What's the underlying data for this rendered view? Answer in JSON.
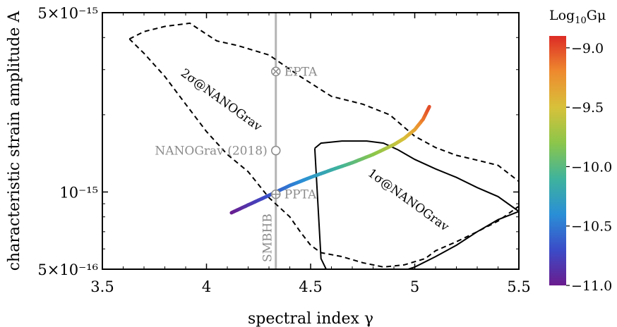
{
  "chart_data": {
    "type": "line",
    "xlabel": "spectral index γ",
    "ylabel": "characteristic strain amplitude  A",
    "xlim": [
      3.5,
      5.5
    ],
    "ylim": [
      5e-16,
      5e-15
    ],
    "yscale": "log",
    "x_ticks": [
      "3.5",
      "4",
      "4.5",
      "5",
      "5.5"
    ],
    "y_ticks": [
      {
        "value": 5e-16,
        "label": "5×10⁻¹⁶"
      },
      {
        "value": 1e-15,
        "label": "10⁻¹⁵"
      },
      {
        "value": 5e-15,
        "label": "5×10⁻¹⁵"
      }
    ],
    "smbhb": {
      "label": "SMBHB",
      "gamma": 4.333,
      "color": "#b4b4b4"
    },
    "points": [
      {
        "label": "EPTA",
        "gamma": 4.333,
        "A": 2.95e-15,
        "marker": "otimes"
      },
      {
        "label": "NANOGrav (2018)",
        "gamma": 4.333,
        "A": 1.45e-15,
        "marker": "circle",
        "label_side": "left"
      },
      {
        "label": "PPTA",
        "gamma": 4.333,
        "A": 9.8e-16,
        "marker": "oplus"
      }
    ],
    "contours": [
      {
        "label": "2σ@NANOGrav",
        "style": "dashed",
        "x": [
          3.63,
          3.7,
          3.8,
          3.92,
          4.0,
          4.05,
          4.15,
          4.3,
          4.45,
          4.6,
          4.75,
          4.88,
          5.0,
          5.1,
          5.2,
          5.3,
          5.4,
          5.5,
          5.5,
          5.4,
          5.3,
          5.2,
          5.1,
          5.05,
          4.95,
          4.85,
          4.75,
          4.65,
          4.55,
          4.5,
          4.45,
          4.4,
          4.3,
          4.2,
          4.1,
          4.0,
          3.9,
          3.8,
          3.7,
          3.63
        ],
        "y": [
          3.95e-15,
          4.22e-15,
          4.42e-15,
          4.55e-15,
          4.12e-15,
          3.88e-15,
          3.72e-15,
          3.42e-15,
          2.82e-15,
          2.36e-15,
          2.2e-15,
          2e-15,
          1.65e-15,
          1.49e-15,
          1.39e-15,
          1.33e-15,
          1.27e-15,
          1.1e-15,
          8.8e-16,
          7.7e-16,
          7e-16,
          6.4e-16,
          5.9e-16,
          5.5e-16,
          5.2e-16,
          5.1e-16,
          5.3e-16,
          5.6e-16,
          5.8e-16,
          6.2e-16,
          7e-16,
          8e-16,
          9.5e-16,
          1.2e-15,
          1.4e-15,
          1.72e-15,
          2.2e-15,
          2.82e-15,
          3.47e-15,
          3.95e-15
        ]
      },
      {
        "label": "1σ@NANOGrav",
        "style": "solid",
        "x": [
          4.52,
          4.55,
          4.65,
          4.77,
          4.85,
          4.92,
          5.0,
          5.1,
          5.2,
          5.3,
          5.4,
          5.5,
          5.5,
          5.4,
          5.3,
          5.2,
          5.1,
          5.0,
          4.9,
          4.8,
          4.7,
          4.62,
          4.55,
          4.52
        ],
        "y": [
          1.48e-15,
          1.55e-15,
          1.58e-15,
          1.58e-15,
          1.55e-15,
          1.46e-15,
          1.34e-15,
          1.23e-15,
          1.14e-15,
          1.04e-15,
          9.6e-16,
          8.4e-16,
          8.4e-16,
          7.8e-16,
          7e-16,
          6.2e-16,
          5.6e-16,
          5.1e-16,
          4.8e-16,
          4.5e-16,
          4.3e-16,
          4.2e-16,
          5.5e-16,
          1.48e-15
        ]
      }
    ],
    "string_curve": {
      "colorbar_quantity": "Log10Gμ",
      "gamma": [
        4.12,
        4.2,
        4.3,
        4.4,
        4.5,
        4.6,
        4.7,
        4.8,
        4.9,
        4.95,
        5.0,
        5.04,
        5.07
      ],
      "A": [
        8.3e-16,
        8.9e-16,
        9.7e-16,
        1.06e-15,
        1.14e-15,
        1.22e-15,
        1.3e-15,
        1.4e-15,
        1.53e-15,
        1.62e-15,
        1.75e-15,
        1.92e-15,
        2.15e-15
      ],
      "log10_Gmu": [
        -11.0,
        -10.86,
        -10.68,
        -10.51,
        -10.34,
        -10.17,
        -10.0,
        -9.82,
        -9.62,
        -9.5,
        -9.35,
        -9.15,
        -9.0
      ]
    },
    "colorbar": {
      "title_base": "Log",
      "title_sub": "10",
      "title_tail": "Gμ",
      "range": [
        -11.0,
        -8.9
      ],
      "ticks": [
        {
          "value": -9.0,
          "label": "−9.0"
        },
        {
          "value": -9.5,
          "label": "−9.5"
        },
        {
          "value": -10.0,
          "label": "−10.0"
        },
        {
          "value": -10.5,
          "label": "−10.5"
        },
        {
          "value": -11.0,
          "label": "−11.0"
        }
      ],
      "colors": [
        "#6a1c8e",
        "#3b4cc8",
        "#2a8fd6",
        "#3fb39c",
        "#8cc64a",
        "#d8c13a",
        "#ee8a2e",
        "#dd2b26"
      ]
    },
    "grid": false
  }
}
